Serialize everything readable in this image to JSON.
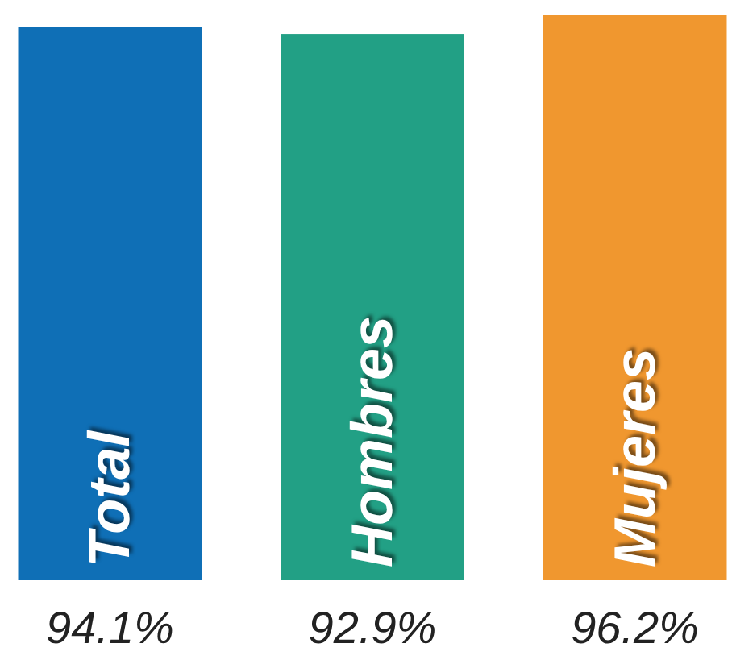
{
  "chart_data": {
    "type": "bar",
    "categories": [
      "Total",
      "Hombres",
      "Mujeres"
    ],
    "values": [
      94.1,
      92.9,
      96.2
    ],
    "colors": [
      "#0f6fb6",
      "#22a085",
      "#f0972f"
    ],
    "value_labels": [
      "94.1%",
      "92.9%",
      "96.2%"
    ]
  }
}
